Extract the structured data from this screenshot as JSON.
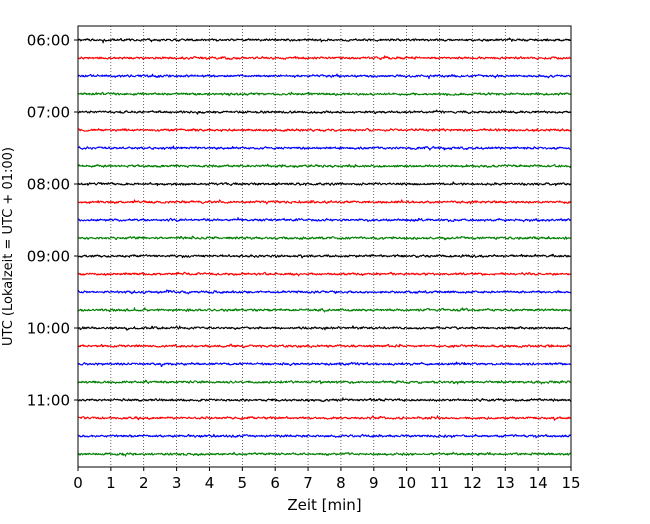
{
  "chart_data": {
    "type": "line",
    "title": "",
    "xlabel": "Zeit  [min]",
    "ylabel": "UTC (Lokalzeit = UTC + 01:00)",
    "xlim": [
      0,
      15
    ],
    "x_ticks": [
      0,
      1,
      2,
      3,
      4,
      5,
      6,
      7,
      8,
      9,
      10,
      11,
      12,
      13,
      14,
      15
    ],
    "y_ticks": [
      "06:00",
      "07:00",
      "08:00",
      "09:00",
      "10:00",
      "11:00"
    ],
    "grid": "vertical dotted lines at each minute",
    "legend": "none",
    "trace_interval_minutes": 15,
    "color_cycle": [
      "#000000",
      "#ff0000",
      "#0000ff",
      "#008000"
    ],
    "series": [
      {
        "start": "06:00"
      },
      {
        "start": "06:15"
      },
      {
        "start": "06:30"
      },
      {
        "start": "06:45"
      },
      {
        "start": "07:00"
      },
      {
        "start": "07:15"
      },
      {
        "start": "07:30"
      },
      {
        "start": "07:45"
      },
      {
        "start": "08:00"
      },
      {
        "start": "08:15"
      },
      {
        "start": "08:30"
      },
      {
        "start": "08:45"
      },
      {
        "start": "09:00"
      },
      {
        "start": "09:15"
      },
      {
        "start": "09:30"
      },
      {
        "start": "09:45"
      },
      {
        "start": "10:00"
      },
      {
        "start": "10:15"
      },
      {
        "start": "10:30"
      },
      {
        "start": "10:45"
      },
      {
        "start": "11:00"
      },
      {
        "start": "11:15"
      },
      {
        "start": "11:30"
      },
      {
        "start": "11:45"
      }
    ]
  }
}
